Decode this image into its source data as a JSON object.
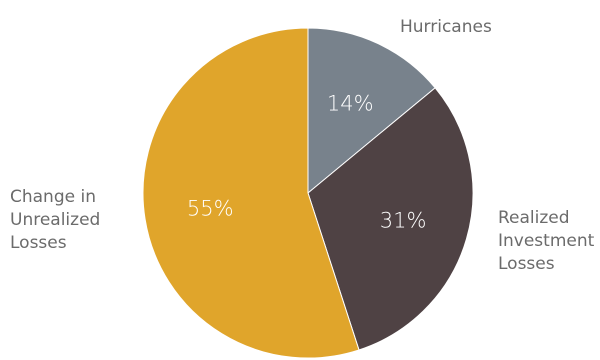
{
  "chart_data": {
    "type": "pie",
    "title": "",
    "slices": [
      {
        "label": "Hurricanes",
        "label_lines": [
          "Hurricanes"
        ],
        "value": 14,
        "value_label": "14%",
        "color": "#78828c"
      },
      {
        "label": "Realized Investment Losses",
        "label_lines": [
          "Realized",
          "Investment",
          "Losses"
        ],
        "value": 31,
        "value_label": "31%",
        "color": "#4f4244"
      },
      {
        "label": "Change in Unrealized Losses",
        "label_lines": [
          "Change in",
          "Unrealized",
          "Losses"
        ],
        "value": 55,
        "value_label": "55%",
        "color": "#e0a52b"
      }
    ],
    "start": "12 o'clock",
    "direction": "clockwise",
    "legend": "none"
  },
  "colors": {
    "label_text": "#6b6b6b",
    "value_text": "#ffffff",
    "background": "#ffffff"
  }
}
